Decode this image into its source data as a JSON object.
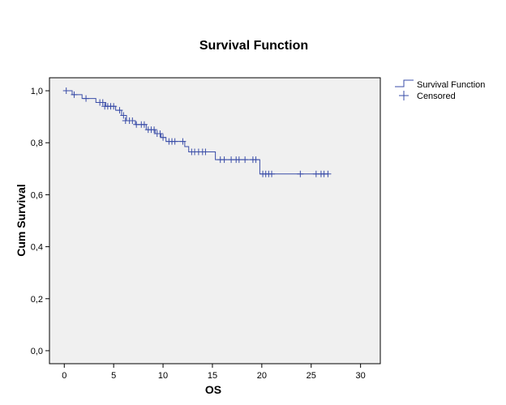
{
  "chart_data": {
    "type": "line",
    "title": "Survival Function",
    "xlabel": "OS",
    "ylabel": "Cum Survival",
    "xlim": [
      -1.5,
      32
    ],
    "ylim": [
      -0.05,
      1.05
    ],
    "x_ticks": [
      0,
      5,
      10,
      15,
      20,
      25,
      30
    ],
    "x_tick_labels": [
      "0",
      "5",
      "10",
      "15",
      "20",
      "25",
      "30"
    ],
    "y_ticks": [
      0.0,
      0.2,
      0.4,
      0.6,
      0.8,
      1.0
    ],
    "y_tick_labels": [
      "0,0",
      "0,2",
      "0,4",
      "0,6",
      "0,8",
      "1,0"
    ],
    "legend": {
      "position": "top-right-outside",
      "entries": [
        "Survival Function",
        "Censored"
      ]
    },
    "series": [
      {
        "name": "Survival Function",
        "kind": "step",
        "color": "#3a4da8",
        "x": [
          0,
          0.8,
          1.8,
          3.2,
          4.2,
          5.2,
          5.8,
          6.3,
          7.2,
          8.3,
          9.2,
          9.8,
          10.3,
          12.2,
          12.6,
          15.3,
          19.8,
          26.7
        ],
        "y": [
          1.0,
          0.985,
          0.97,
          0.955,
          0.94,
          0.925,
          0.905,
          0.885,
          0.87,
          0.85,
          0.835,
          0.82,
          0.805,
          0.785,
          0.765,
          0.735,
          0.68,
          0.68
        ]
      },
      {
        "name": "Censored",
        "kind": "marker",
        "color": "#3a4da8",
        "x": [
          0.2,
          1.0,
          2.2,
          3.6,
          3.9,
          4.1,
          4.4,
          4.7,
          5.0,
          5.6,
          6.0,
          6.2,
          6.6,
          6.9,
          7.3,
          7.8,
          8.1,
          8.5,
          8.8,
          9.1,
          9.4,
          9.7,
          10.0,
          10.6,
          10.9,
          11.2,
          12.0,
          12.9,
          13.2,
          13.6,
          14.0,
          14.3,
          15.8,
          16.2,
          16.9,
          17.4,
          17.7,
          18.3,
          19.1,
          19.4,
          20.1,
          20.4,
          20.7,
          21.0,
          23.9,
          25.5,
          26.0,
          26.3,
          26.7
        ],
        "y": [
          1.0,
          0.985,
          0.97,
          0.955,
          0.955,
          0.94,
          0.94,
          0.94,
          0.94,
          0.925,
          0.905,
          0.885,
          0.885,
          0.885,
          0.87,
          0.87,
          0.87,
          0.85,
          0.85,
          0.85,
          0.835,
          0.835,
          0.82,
          0.805,
          0.805,
          0.805,
          0.805,
          0.765,
          0.765,
          0.765,
          0.765,
          0.765,
          0.735,
          0.735,
          0.735,
          0.735,
          0.735,
          0.735,
          0.735,
          0.735,
          0.68,
          0.68,
          0.68,
          0.68,
          0.68,
          0.68,
          0.68,
          0.68,
          0.68
        ]
      }
    ]
  }
}
